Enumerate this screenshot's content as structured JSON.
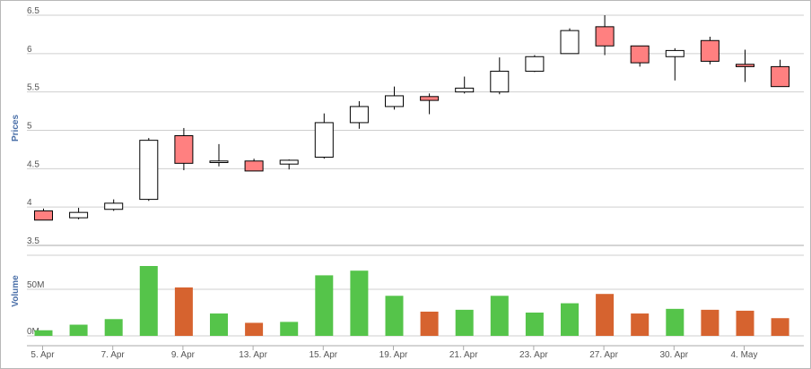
{
  "chart_data": [
    {
      "type": "candlestick",
      "ylabel": "Prices",
      "ylim": [
        3.5,
        6.5
      ],
      "yticks": [
        "3.5",
        "4",
        "4.5",
        "5",
        "5.5",
        "6",
        "6.5"
      ],
      "grid": true,
      "colors": {
        "up_fill": "#ffffff",
        "down_fill": "#ff8080",
        "wick": "#000000"
      },
      "candles": [
        {
          "open": 3.95,
          "high": 3.98,
          "low": 3.83,
          "close": 3.83
        },
        {
          "open": 3.86,
          "high": 3.99,
          "low": 3.84,
          "close": 3.93
        },
        {
          "open": 3.97,
          "high": 4.1,
          "low": 3.95,
          "close": 4.05
        },
        {
          "open": 4.1,
          "high": 4.9,
          "low": 4.08,
          "close": 4.87
        },
        {
          "open": 4.93,
          "high": 5.03,
          "low": 4.48,
          "close": 4.57
        },
        {
          "open": 4.58,
          "high": 4.82,
          "low": 4.53,
          "close": 4.6
        },
        {
          "open": 4.6,
          "high": 4.63,
          "low": 4.47,
          "close": 4.47
        },
        {
          "open": 4.56,
          "high": 4.62,
          "low": 4.49,
          "close": 4.61
        },
        {
          "open": 4.65,
          "high": 5.22,
          "low": 4.63,
          "close": 5.1
        },
        {
          "open": 5.1,
          "high": 5.38,
          "low": 5.02,
          "close": 5.31
        },
        {
          "open": 5.31,
          "high": 5.57,
          "low": 5.27,
          "close": 5.45
        },
        {
          "open": 5.44,
          "high": 5.48,
          "low": 5.21,
          "close": 5.39
        },
        {
          "open": 5.5,
          "high": 5.7,
          "low": 5.48,
          "close": 5.55
        },
        {
          "open": 5.5,
          "high": 5.95,
          "low": 5.47,
          "close": 5.77
        },
        {
          "open": 5.77,
          "high": 5.98,
          "low": 5.76,
          "close": 5.96
        },
        {
          "open": 6.0,
          "high": 6.33,
          "low": 6.0,
          "close": 6.3
        },
        {
          "open": 6.35,
          "high": 6.5,
          "low": 5.98,
          "close": 6.1
        },
        {
          "open": 6.1,
          "high": 6.1,
          "low": 5.83,
          "close": 5.88
        },
        {
          "open": 5.96,
          "high": 6.07,
          "low": 5.65,
          "close": 6.04
        },
        {
          "open": 6.17,
          "high": 6.22,
          "low": 5.86,
          "close": 5.9
        },
        {
          "open": 5.86,
          "high": 6.05,
          "low": 5.63,
          "close": 5.83
        },
        {
          "open": 5.83,
          "high": 5.92,
          "low": 5.57,
          "close": 5.57
        }
      ]
    },
    {
      "type": "bar",
      "ylabel": "Volume",
      "ylim": [
        0,
        100000000
      ],
      "yticks": [
        "0M",
        "50M"
      ],
      "grid": true,
      "colors": {
        "up": "#55c44a",
        "down": "#d6632f"
      },
      "bars": [
        {
          "value": 6000000,
          "dir": "up"
        },
        {
          "value": 12000000,
          "dir": "up"
        },
        {
          "value": 18000000,
          "dir": "up"
        },
        {
          "value": 75000000,
          "dir": "up"
        },
        {
          "value": 52000000,
          "dir": "down"
        },
        {
          "value": 24000000,
          "dir": "up"
        },
        {
          "value": 14000000,
          "dir": "down"
        },
        {
          "value": 15000000,
          "dir": "up"
        },
        {
          "value": 65000000,
          "dir": "up"
        },
        {
          "value": 70000000,
          "dir": "up"
        },
        {
          "value": 43000000,
          "dir": "up"
        },
        {
          "value": 26000000,
          "dir": "down"
        },
        {
          "value": 28000000,
          "dir": "up"
        },
        {
          "value": 43000000,
          "dir": "up"
        },
        {
          "value": 25000000,
          "dir": "up"
        },
        {
          "value": 35000000,
          "dir": "up"
        },
        {
          "value": 45000000,
          "dir": "down"
        },
        {
          "value": 24000000,
          "dir": "down"
        },
        {
          "value": 29000000,
          "dir": "up"
        },
        {
          "value": 28000000,
          "dir": "down"
        },
        {
          "value": 27000000,
          "dir": "down"
        },
        {
          "value": 19000000,
          "dir": "down"
        }
      ]
    }
  ],
  "x_labels": [
    {
      "index": 0,
      "label": "5. Apr"
    },
    {
      "index": 2,
      "label": "7. Apr"
    },
    {
      "index": 4,
      "label": "9. Apr"
    },
    {
      "index": 6,
      "label": "13. Apr"
    },
    {
      "index": 8,
      "label": "15. Apr"
    },
    {
      "index": 10,
      "label": "19. Apr"
    },
    {
      "index": 12,
      "label": "21. Apr"
    },
    {
      "index": 14,
      "label": "23. Apr"
    },
    {
      "index": 16,
      "label": "27. Apr"
    },
    {
      "index": 18,
      "label": "30. Apr"
    },
    {
      "index": 20,
      "label": "4. May"
    }
  ]
}
